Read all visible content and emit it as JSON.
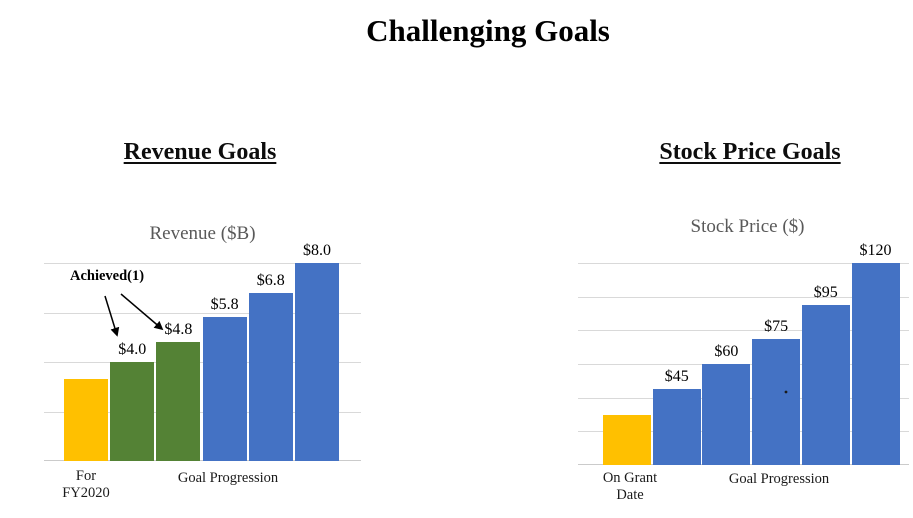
{
  "title": "Challenging Goals",
  "sections": [
    {
      "heading": "Revenue Goals"
    },
    {
      "heading": "Stock Price Goals"
    }
  ],
  "chart_data": [
    {
      "type": "bar",
      "title": "Revenue ($B)",
      "section": "Revenue Goals",
      "values": [
        3.3,
        4.0,
        4.8,
        5.8,
        6.8,
        8.0
      ],
      "bar_labels": [
        "",
        "$4.0",
        "$4.8",
        "$5.8",
        "$6.8",
        "$8.0"
      ],
      "bar_colors": [
        "#FFC000",
        "#548235",
        "#548235",
        "#4472C4",
        "#4472C4",
        "#4472C4"
      ],
      "ylim": [
        0,
        8
      ],
      "gridline_interval": 2,
      "grid_on": true,
      "legend": "none",
      "x_axis_labels": [
        "For\nFY2020",
        "Goal Progression"
      ],
      "annotation": {
        "text": "Achieved(1)",
        "points_to": "the two green achieved bars ($4.0 and $4.8)"
      }
    },
    {
      "type": "bar",
      "title": "Stock Price ($)",
      "section": "Stock Price Goals",
      "values": [
        30,
        45,
        60,
        75,
        95,
        120
      ],
      "bar_labels": [
        "",
        "$45",
        "$60",
        "$75",
        "$95",
        "$120"
      ],
      "bar_colors": [
        "#FFC000",
        "#4472C4",
        "#4472C4",
        "#4472C4",
        "#4472C4",
        "#4472C4"
      ],
      "ylim": [
        0,
        120
      ],
      "gridline_interval": 20,
      "grid_on": true,
      "legend": "none",
      "x_axis_labels": [
        "On Grant\nDate",
        "Goal Progression"
      ]
    }
  ],
  "colors": {
    "baseline_yellow": "#FFC000",
    "achieved_green": "#548235",
    "goal_blue": "#4472C4",
    "gridline": "#D9D9D9",
    "chart_title_gray": "#595959"
  }
}
